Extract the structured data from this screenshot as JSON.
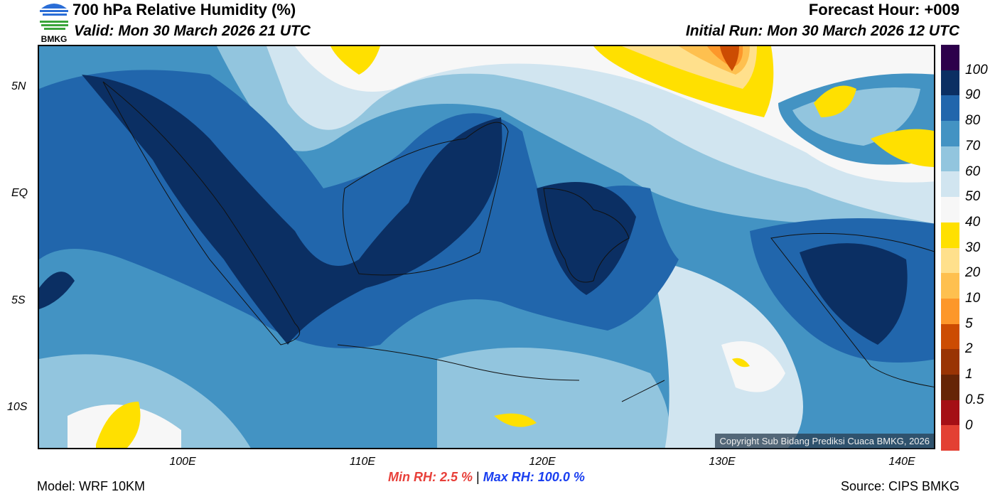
{
  "header": {
    "title": "700 hPa Relative Humidity (%)",
    "valid": "Valid: Mon 30 March 2026 21 UTC",
    "forecast_hour": "Forecast Hour: +009",
    "initial_run": "Initial Run: Mon 30 March 2026 12 UTC",
    "logo_text": "BMKG"
  },
  "axes": {
    "lat_labels": [
      "5N",
      "EQ",
      "5S",
      "10S"
    ],
    "lon_labels": [
      "100E",
      "110E",
      "120E",
      "130E",
      "140E"
    ]
  },
  "colorbar": {
    "labels": [
      "100",
      "90",
      "80",
      "70",
      "60",
      "50",
      "40",
      "30",
      "20",
      "10",
      "5",
      "2",
      "1",
      "0.5",
      "0"
    ],
    "colors": [
      "#2d004b",
      "#0b2f63",
      "#2166ac",
      "#4393c3",
      "#92c5de",
      "#d1e5f0",
      "#f7f7f7",
      "#ffe000",
      "#ffe08c",
      "#fec04f",
      "#fd972a",
      "#cc4c02",
      "#993404",
      "#662506",
      "#a50f15",
      "#e34033"
    ]
  },
  "footer": {
    "model": "Model: WRF 10KM",
    "min_label": "Min RH:",
    "min_value": "2.5 %",
    "separator": "|",
    "max_label": "Max RH:",
    "max_value": "100.0 %",
    "source": "Source: CIPS BMKG"
  },
  "copyright": "Copyright Sub Bidang Prediksi Cuaca BMKG, 2026"
}
